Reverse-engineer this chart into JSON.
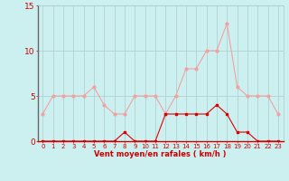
{
  "x": [
    0,
    1,
    2,
    3,
    4,
    5,
    6,
    7,
    8,
    9,
    10,
    11,
    12,
    13,
    14,
    15,
    16,
    17,
    18,
    19,
    20,
    21,
    22,
    23
  ],
  "rafales": [
    3,
    5,
    5,
    5,
    5,
    6,
    4,
    3,
    3,
    5,
    5,
    5,
    3,
    5,
    8,
    8,
    10,
    10,
    13,
    6,
    5,
    5,
    5,
    3
  ],
  "moyen": [
    0,
    0,
    0,
    0,
    0,
    0,
    0,
    0,
    1,
    0,
    0,
    0,
    3,
    3,
    3,
    3,
    3,
    4,
    3,
    1,
    1,
    0,
    0,
    0
  ],
  "rafales_color": "#f4a0a0",
  "moyen_color": "#dd0000",
  "background_color": "#ccf0f0",
  "grid_color": "#aacccc",
  "xlabel": "Vent moyen/en rafales ( km/h )",
  "ylim": [
    0,
    15
  ],
  "xlim": [
    -0.5,
    23.5
  ],
  "yticks": [
    0,
    5,
    10,
    15
  ],
  "xticks": [
    0,
    1,
    2,
    3,
    4,
    5,
    6,
    7,
    8,
    9,
    10,
    11,
    12,
    13,
    14,
    15,
    16,
    17,
    18,
    19,
    20,
    21,
    22,
    23
  ],
  "tick_color": "#cc0000",
  "label_color": "#cc0000",
  "spine_left_color": "#666666",
  "spine_bottom_color": "#cc0000"
}
